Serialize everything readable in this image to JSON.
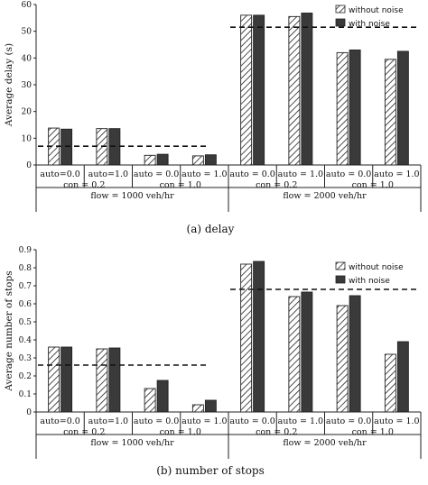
{
  "chart_data": [
    {
      "type": "bar",
      "caption": "(a)  delay",
      "ylabel": "Average delay (s)",
      "ylim": [
        0,
        60
      ],
      "yticks": [
        "0",
        "10",
        "20",
        "30",
        "40",
        "50",
        "60"
      ],
      "categories": [
        [
          "auto=0.0",
          "con = 0.2"
        ],
        [
          "auto=1.0",
          ""
        ],
        [
          "auto = 0.0",
          "con = 1.0"
        ],
        [
          "auto = 1.0",
          ""
        ],
        [
          "auto = 0.0",
          "con = 0.2"
        ],
        [
          "auto = 1.0",
          ""
        ],
        [
          "auto = 0.0",
          "con = 1.0"
        ],
        [
          "auto = 1.0",
          ""
        ]
      ],
      "groups": [
        "flow = 1000 veh/hr",
        "flow = 2000 veh/hr"
      ],
      "series": [
        {
          "name": "without noise",
          "values": [
            13.8,
            13.6,
            3.6,
            3.4,
            56.0,
            55.5,
            42.0,
            39.5
          ]
        },
        {
          "name": "with noise",
          "values": [
            13.4,
            13.6,
            4.0,
            3.8,
            56.0,
            56.8,
            43.0,
            42.5
          ]
        }
      ],
      "reference_lines": [
        {
          "group": 0,
          "value": 7.0
        },
        {
          "group": 1,
          "value": 51.5
        }
      ],
      "legend_position": "top-right",
      "grid": false
    },
    {
      "type": "bar",
      "caption": "(b)  number of stops",
      "ylabel": "Average number of stops",
      "ylim": [
        0,
        0.9
      ],
      "yticks": [
        "0",
        "0.1",
        "0.2",
        "0.3",
        "0.4",
        "0.5",
        "0.6",
        "0.7",
        "0.8",
        "0.9"
      ],
      "categories": [
        [
          "auto=0.0",
          "con = 0.2"
        ],
        [
          "auto=1.0",
          ""
        ],
        [
          "auto = 0.0",
          "con = 1.0"
        ],
        [
          "auto = 1.0",
          ""
        ],
        [
          "auto = 0.0",
          "con = 0.2"
        ],
        [
          "auto = 1.0",
          ""
        ],
        [
          "auto = 0.0",
          "con = 1.0"
        ],
        [
          "auto = 1.0",
          ""
        ]
      ],
      "groups": [
        "flow = 1000 veh/hr",
        "flow = 2000 veh/hr"
      ],
      "series": [
        {
          "name": "without noise",
          "values": [
            0.36,
            0.35,
            0.13,
            0.04,
            0.82,
            0.64,
            0.59,
            0.32
          ]
        },
        {
          "name": "with noise",
          "values": [
            0.36,
            0.355,
            0.175,
            0.065,
            0.835,
            0.665,
            0.645,
            0.39
          ]
        }
      ],
      "reference_lines": [
        {
          "group": 0,
          "value": 0.26
        },
        {
          "group": 1,
          "value": 0.68
        }
      ],
      "legend_position": "top-right",
      "grid": false
    }
  ]
}
